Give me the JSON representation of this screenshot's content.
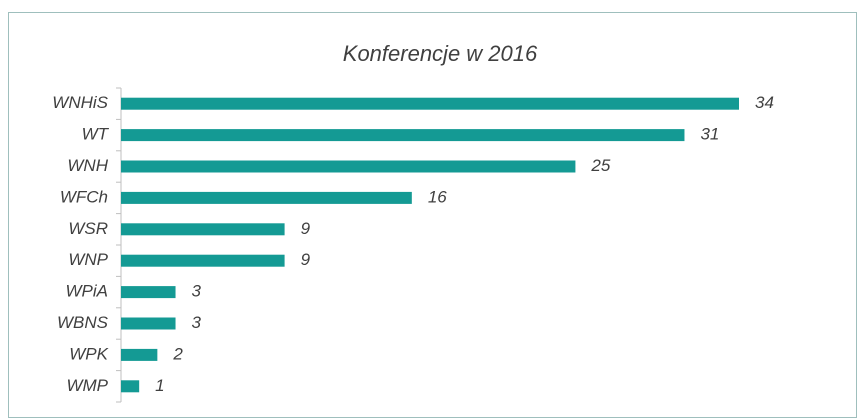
{
  "chart_data": {
    "type": "bar",
    "orientation": "horizontal",
    "title": "Konferencje w 2016",
    "categories": [
      "WNHiS",
      "WT",
      "WNH",
      "WFCh",
      "WSR",
      "WNP",
      "WPiA",
      "WBNS",
      "WPK",
      "WMP"
    ],
    "values": [
      34,
      31,
      25,
      16,
      9,
      9,
      3,
      3,
      2,
      1
    ],
    "color": "#149a94"
  }
}
